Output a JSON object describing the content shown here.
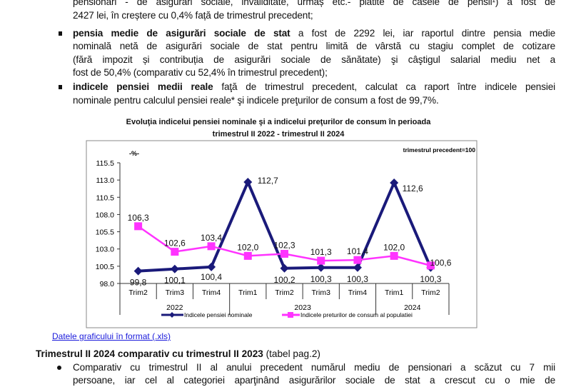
{
  "text": {
    "line0": "pensionari - de asigurări sociale, invaliditate, urmaș etc.- plătite de casele de pensii¹) a fost de",
    "line1": "2427 lei, în creștere cu 0,4% față de trimestrul precedent;",
    "b1_bold": "pensia medie de asigurări sociale de stat",
    "b1_rest": " a fost de 2292 lei, iar raportul dintre pensia medie",
    "b1_l2": "nominală netă de asigurări sociale de stat pentru limită de vârstă cu stagiu complet de cotizare",
    "b1_l3": "(fără impozit și contribuția de asigurări sociale de sănătate) şi câştigul salarial mediu net a",
    "b1_l4": "fost de 50,4% (comparativ cu 52,4% în trimestrul precedent);",
    "b2_bold": "indicele pensiei medii reale",
    "b2_rest": " faţă de trimestrul precedent, calculat ca raport între indicele pensiei",
    "b2_l2": "nominale pentru calculul pensiei reale* şi indicele preţurilor de consum a fost de 99,7%.",
    "link": "Datele graficului în format (.xls)",
    "heading_bold": "Trimestrul II 2024 comparativ cu trimestrul II 2023",
    "heading_rest": " (tabel pag.2)",
    "p1_l1": "Comparativ cu trimestrul II al anului precedent numărul mediu de pensionari a scăzut cu 7 mii",
    "p1_l2": "persoane, iar cel al categoriei aparţinând asigurărilor sociale de stat a crescut cu o mie de"
  },
  "chart_data": {
    "type": "line",
    "title_l1": "Evoluţia indicelui pensiei nominale şi a indicelui preţurilor de consum în perioada",
    "title_l2": "trimestrul II 2022 - trimestrul II 2024",
    "unit_label": "-%-",
    "base_note": "trimestrul precedent=100",
    "categories": [
      "Trim2",
      "Trim3",
      "Trim4",
      "Trim1",
      "Trim2",
      "Trim3",
      "Trim4",
      "Trim1",
      "Trim2"
    ],
    "years": [
      {
        "label": "2022",
        "span": 3
      },
      {
        "label": "2023",
        "span": 4
      },
      {
        "label": "2024",
        "span": 2
      }
    ],
    "ylim": [
      98.0,
      115.5
    ],
    "yticks": [
      "98.0",
      "100.5",
      "103.0",
      "105.5",
      "108.0",
      "110.5",
      "113.0",
      "115.5"
    ],
    "series": [
      {
        "name": "Indicele pensiei nominale",
        "color": "#1a1a7a",
        "marker": "diamond",
        "values": [
          99.8,
          100.1,
          100.4,
          112.7,
          100.2,
          100.3,
          100.3,
          112.6,
          100.3
        ],
        "labels": [
          "99,8",
          "100,1",
          "100,4",
          "112,7",
          "100,2",
          "100,3",
          "100,3",
          "112,6",
          "100,3"
        ]
      },
      {
        "name": "Indicele preturilor de consum al populatiei",
        "color": "#ff33ff",
        "marker": "square",
        "values": [
          106.3,
          102.6,
          103.4,
          102.0,
          102.3,
          101.3,
          101.4,
          102.0,
          100.6
        ],
        "labels": [
          "106,3",
          "102,6",
          "103,4",
          "102,0",
          "102,3",
          "101,3",
          "101,4",
          "102,0",
          "100,6"
        ]
      }
    ],
    "legend": "bottom",
    "grid": false
  }
}
